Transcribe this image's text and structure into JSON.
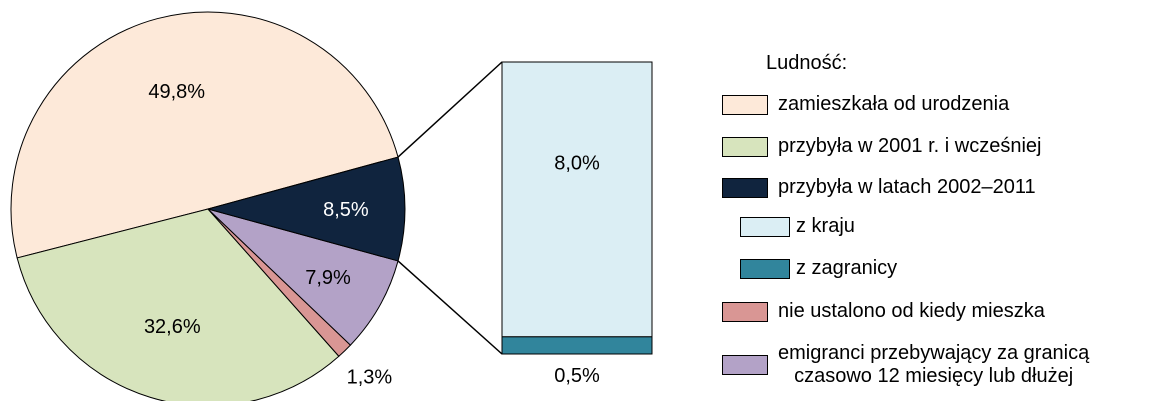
{
  "chart_data": {
    "type": "pie",
    "legend_title": "Ludność:",
    "legend_placement": "right",
    "slices": [
      {
        "label": "zamieszkała od urodzenia",
        "value": 49.8,
        "value_label": "49,8%",
        "color": "#fde9d9"
      },
      {
        "label": "przybyła w 2001 r. i wcześniej",
        "value": 32.6,
        "value_label": "32,6%",
        "color": "#d7e4bd"
      },
      {
        "label": "nie ustalono od kiedy mieszka",
        "value": 1.3,
        "value_label": "1,3%",
        "color": "#d99694"
      },
      {
        "label": "emigranci przebywający za granicą czasowo 12 miesięcy lub dłużej",
        "value": 7.9,
        "value_label": "7,9%",
        "color": "#b3a2c7"
      },
      {
        "label": "przybyła w latach 2002–2011",
        "value": 8.5,
        "value_label": "8,5%",
        "color": "#10243e"
      }
    ],
    "breakdown": {
      "of": "przybyła w latach 2002–2011",
      "parts": [
        {
          "label": "z kraju",
          "value": 8.0,
          "value_label": "8,0%",
          "color": "#dbeef4"
        },
        {
          "label": "z zagranicy",
          "value": 0.5,
          "value_label": "0,5%",
          "color": "#31859c"
        }
      ]
    }
  },
  "legend": {
    "title": "Ludność:",
    "items": [
      {
        "text": "zamieszkała od urodzenia",
        "color": "#fde9d9"
      },
      {
        "text": "przybyła w 2001 r. i wcześniej",
        "color": "#d7e4bd"
      },
      {
        "text": "przybyła w latach 2002–2011",
        "color": "#10243e"
      },
      {
        "text": "z kraju",
        "color": "#dbeef4"
      },
      {
        "text": "z zagranicy",
        "color": "#31859c"
      },
      {
        "text": "nie ustalono od kiedy mieszka",
        "color": "#d99694"
      },
      {
        "text_line1": "emigranci przebywający za granicą",
        "text_line2": "czasowo 12 miesięcy lub dłużej",
        "color": "#b3a2c7"
      }
    ]
  }
}
